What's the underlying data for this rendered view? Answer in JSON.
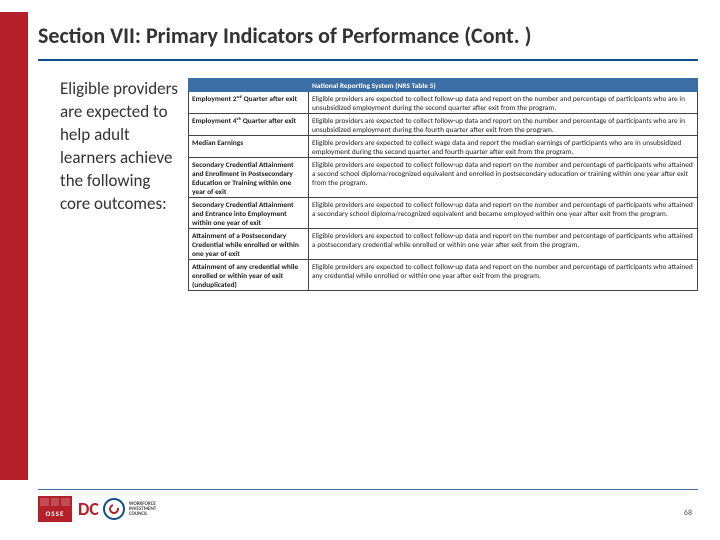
{
  "title": "Section VII:  Primary Indicators of Performance (Cont. )",
  "intro": "Eligible providers are expected to help adult learners achieve the following core outcomes:",
  "page_number": "68",
  "colors": {
    "accent_red": "#b4202a",
    "accent_blue": "#0f4e8a",
    "table_header_bg": "#3a6ea5",
    "text": "#333333",
    "border": "#444444",
    "hr_blue": "#4472a8"
  },
  "logos": {
    "osse": "OSSE",
    "dc": "DC",
    "wic_line1": "WORKFORCE",
    "wic_line2": "INVESTMENT",
    "wic_line3": "COUNCIL"
  },
  "table": {
    "header_blank": "",
    "header_title": "National Reporting System (NRS Table 5)",
    "rows": [
      {
        "label": "Employment 2ⁿᵈ Quarter after exit",
        "desc": "Eligible providers are expected to collect follow-up data and report on the number and percentage of participants who are in unsubsidized employment during the second quarter after exit from the program."
      },
      {
        "label": "Employment 4ᵗʰ Quarter after exit",
        "desc": "Eligible providers are expected to collect follow-up data and report on the number and percentage of participants who are in unsubsidized employment during the fourth quarter after exit from the program."
      },
      {
        "label": "Median Earnings",
        "desc": "Eligible providers are expected to collect wage data and report the median earnings of participants who are in unsubsidized employment during the second quarter and fourth quarter after exit from the program."
      },
      {
        "label": "Secondary Credential Attainment and Enrollment in Postsecondary Education or Training within one year of exit",
        "desc": "Eligible providers are expected to collect follow-up data and report on the number and percentage of participants who attained a second school diploma/recognized equivalent and enrolled in postsecondary education or training within one year after exit from the program."
      },
      {
        "label": "Secondary Credential Attainment and Entrance into Employment within one year of exit",
        "desc": "Eligible providers are expected to collect follow-up data and report on the number and percentage of participants who attained a secondary school diploma/recognized equivalent and became employed within one year after exit from the program."
      },
      {
        "label": "Attainment of a Postsecondary Credential while enrolled or within one year of exit",
        "desc": "Eligible providers are expected to collect follow-up data and report on the number and percentage of participants who attained a postsecondary credential while enrolled or within one year after exit from the program."
      },
      {
        "label": "Attainment of any credential while enrolled or within year of exit (unduplicated)",
        "desc": "Eligible providers are expected to collect follow-up data and report on the number and percentage of participants who attained any credential while enrolled or within one year after exit from the program."
      }
    ]
  }
}
